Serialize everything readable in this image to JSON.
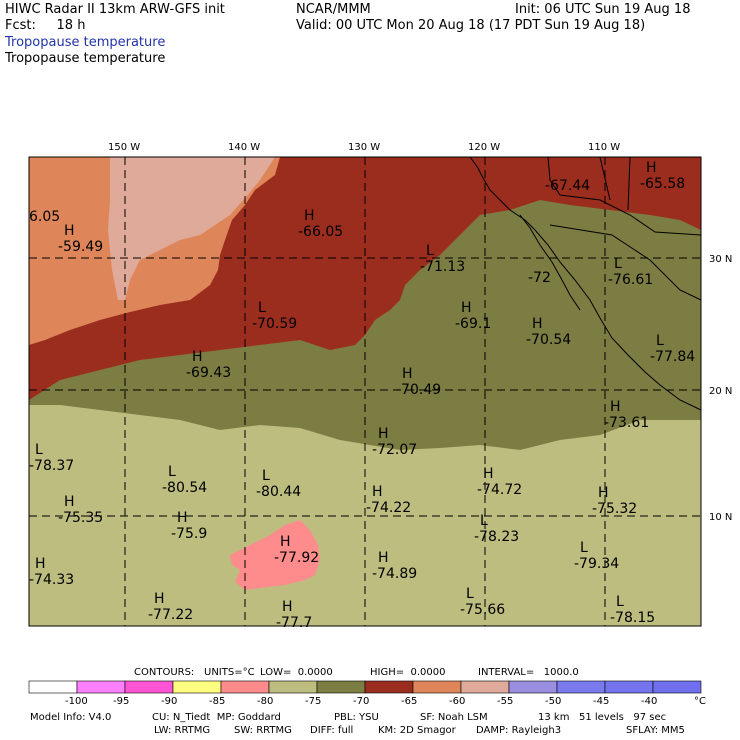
{
  "header": {
    "title_line": "HIWC Radar II 13km ARW-GFS init",
    "fcst_line": "Fcst:     18 h",
    "center_label": "NCAR/MMM",
    "init_line": "Init: 06 UTC Sun 19 Aug 18",
    "valid_line": "Valid: 00 UTC Mon 20 Aug 18 (17 PDT Sun 19 Aug 18)",
    "subtitle_blue": "Tropopause temperature",
    "subtitle_black": "Tropopause temperature"
  },
  "map": {
    "lon_labels": [
      "150 W",
      "140 W",
      "130 W",
      "120 W",
      "110 W"
    ],
    "lat_labels": [
      "30 N",
      "20 N",
      "10 N"
    ],
    "annotations": [
      {
        "type": "",
        "value": "6.05"
      },
      {
        "type": "H",
        "value": "-59.49"
      },
      {
        "type": "H",
        "value": "-66.05"
      },
      {
        "type": "",
        "value": "-67.44"
      },
      {
        "type": "H",
        "value": "-65.58"
      },
      {
        "type": "L",
        "value": "-71.13"
      },
      {
        "type": "",
        "value": "-72"
      },
      {
        "type": "L",
        "value": "-76.61"
      },
      {
        "type": "L",
        "value": "-70.59"
      },
      {
        "type": "H",
        "value": "-69.1"
      },
      {
        "type": "H",
        "value": "-70.54"
      },
      {
        "type": "L",
        "value": "-77.84"
      },
      {
        "type": "H",
        "value": "-69.43"
      },
      {
        "type": "H",
        "value": "-70.49"
      },
      {
        "type": "H",
        "value": "-73.61"
      },
      {
        "type": "L",
        "value": "-78.37"
      },
      {
        "type": "H",
        "value": "-72.07"
      },
      {
        "type": "L",
        "value": "-80.54"
      },
      {
        "type": "L",
        "value": "-80.44"
      },
      {
        "type": "H",
        "value": "-74.72"
      },
      {
        "type": "H",
        "value": "-75.35"
      },
      {
        "type": "H",
        "value": "-74.22"
      },
      {
        "type": "H",
        "value": "-75.32"
      },
      {
        "type": "H",
        "value": "-75.9"
      },
      {
        "type": "L",
        "value": "-78.23"
      },
      {
        "type": "H",
        "value": "-77.92"
      },
      {
        "type": "H",
        "value": "-74.33"
      },
      {
        "type": "H",
        "value": "-74.89"
      },
      {
        "type": "L",
        "value": "-79.34"
      },
      {
        "type": "H",
        "value": "-77.22"
      },
      {
        "type": "H",
        "value": "-77.7"
      },
      {
        "type": "L",
        "value": "-75.66"
      },
      {
        "type": "L",
        "value": "-78.15"
      }
    ],
    "colors": {
      "darkred": "#9b2d1f",
      "orange": "#de8659",
      "pink": "#dfaa9a",
      "olive": "#7c7d42",
      "khaki": "#bdbd80",
      "salmon": "#ff8c8c"
    }
  },
  "contours": {
    "label": "CONTOURS:",
    "units": "UNITS=°C",
    "low": "LOW=  0.0000",
    "high": "HIGH=  0.0000",
    "interval": "INTERVAL=   1000.0"
  },
  "colorbar": {
    "colors": [
      "#ffffff",
      "#ff80ff",
      "#ff55d4",
      "#ffff80",
      "#ff8c8c",
      "#bdbd80",
      "#7c7d42",
      "#9b2d1f",
      "#de8659",
      "#dfaa9a",
      "#9a8ee0",
      "#7a7aef",
      "#7474ee",
      "#7070ef"
    ],
    "labels": [
      "-100",
      "-95",
      "-90",
      "-85",
      "-80",
      "-75",
      "-70",
      "-65",
      "-60",
      "-55",
      "-50",
      "-45",
      "-40"
    ],
    "unit": "°C"
  },
  "footer": {
    "line1_left": "Model Info: V4.0",
    "line1_mid": "CU: N_Tiedt  MP: Goddard",
    "line1_pbl": "PBL: YSU",
    "line1_sf": "SF: Noah LSM",
    "line1_res": "13 km   51 levels   97 sec",
    "line2_lw": "LW: RRTMG",
    "line2_sw": "SW: RRTMG",
    "line2_diff": "DIFF: full",
    "line2_km": "KM: 2D Smagor",
    "line2_damp": "DAMP: Rayleigh3",
    "line2_sflay": "SFLAY: MM5"
  }
}
